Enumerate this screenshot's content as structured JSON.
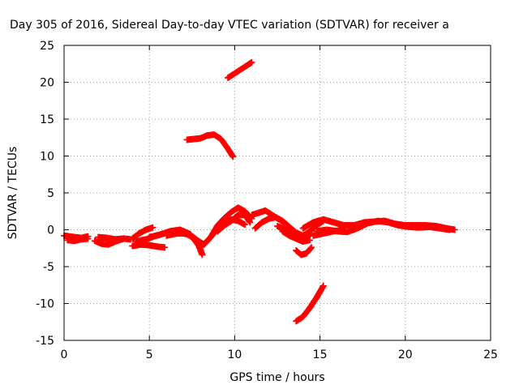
{
  "chart_data": {
    "type": "scatter",
    "title": "Day 305 of 2016, Sidereal Day-to-day VTEC variation (SDTVAR) for receiver a",
    "xlabel": "GPS time / hours",
    "ylabel": "SDTVAR / TECUs",
    "xlim": [
      0,
      25
    ],
    "ylim": [
      -15,
      25
    ],
    "xticks": [
      0,
      5,
      10,
      15,
      20,
      25
    ],
    "yticks": [
      -15,
      -10,
      -5,
      0,
      5,
      10,
      15,
      20,
      25
    ],
    "grid": true,
    "marker_color": "#ff0000",
    "series": [
      {
        "x": [
          0.0,
          0.3,
          0.6,
          1.0,
          1.4
        ],
        "y": [
          -0.8,
          -0.9,
          -1.0,
          -1.1,
          -0.9
        ]
      },
      {
        "x": [
          0.2,
          0.6,
          1.0,
          1.4
        ],
        "y": [
          -1.4,
          -1.5,
          -1.3,
          -1.2
        ]
      },
      {
        "x": [
          1.8,
          2.2,
          2.6,
          3.0,
          3.5,
          3.9
        ],
        "y": [
          -1.5,
          -1.9,
          -2.0,
          -1.6,
          -1.2,
          -1.3
        ]
      },
      {
        "x": [
          2.0,
          2.5,
          3.0,
          3.5
        ],
        "y": [
          -1.0,
          -1.1,
          -1.3,
          -1.2
        ]
      },
      {
        "x": [
          4.0,
          4.5,
          5.0,
          5.5,
          5.9
        ],
        "y": [
          -2.2,
          -2.0,
          -2.1,
          -2.3,
          -2.4
        ]
      },
      {
        "x": [
          4.0,
          4.4,
          4.8,
          5.2
        ],
        "y": [
          -1.2,
          -0.5,
          0.0,
          0.3
        ]
      },
      {
        "x": [
          4.2,
          4.8,
          5.4,
          6.0,
          6.6,
          7.2,
          7.8,
          8.2,
          8.6,
          9.0,
          9.4,
          9.8,
          10.2,
          10.6
        ],
        "y": [
          -1.6,
          -1.3,
          -0.8,
          -0.4,
          -0.3,
          -0.6,
          -1.4,
          -2.0,
          -1.0,
          0.2,
          1.0,
          1.4,
          1.2,
          0.7
        ]
      },
      {
        "x": [
          5.0,
          5.6,
          6.2,
          6.8,
          7.4,
          7.9,
          8.1
        ],
        "y": [
          -1.0,
          -0.7,
          -0.2,
          0.0,
          -0.6,
          -2.2,
          -3.4
        ]
      },
      {
        "x": [
          6.0,
          6.6,
          7.2,
          7.7
        ],
        "y": [
          -0.8,
          -0.5,
          -0.5,
          -1.2
        ]
      },
      {
        "x": [
          8.0,
          8.6,
          9.0,
          9.4,
          9.8,
          10.2,
          10.6,
          11.0
        ],
        "y": [
          -2.4,
          -1.0,
          0.6,
          1.6,
          2.4,
          3.0,
          2.5,
          1.5
        ]
      },
      {
        "x": [
          9.0,
          9.4,
          9.8,
          10.2,
          10.6,
          10.9
        ],
        "y": [
          -0.2,
          0.6,
          1.2,
          2.0,
          2.0,
          1.0
        ]
      },
      {
        "x": [
          7.2,
          7.6,
          8.0,
          8.4,
          8.8,
          9.2,
          9.6,
          9.9
        ],
        "y": [
          12.2,
          12.3,
          12.4,
          12.8,
          12.9,
          12.3,
          11.0,
          9.9
        ]
      },
      {
        "x": [
          9.6,
          10.0,
          10.4,
          10.8,
          11.0
        ],
        "y": [
          20.6,
          21.2,
          21.8,
          22.4,
          22.7
        ]
      },
      {
        "x": [
          11.0,
          11.4,
          11.8,
          12.2,
          12.6,
          13.0
        ],
        "y": [
          2.0,
          2.3,
          2.6,
          2.0,
          1.4,
          0.8
        ]
      },
      {
        "x": [
          11.2,
          11.6,
          12.0,
          12.4,
          12.8,
          13.2,
          13.6,
          14.0,
          14.4,
          14.8,
          15.2
        ],
        "y": [
          0.2,
          1.0,
          1.5,
          1.7,
          1.2,
          0.4,
          -0.4,
          -0.8,
          -0.2,
          0.6,
          1.2
        ]
      },
      {
        "x": [
          12.8,
          13.2,
          13.6,
          14.0,
          14.4
        ],
        "y": [
          -0.2,
          -0.8,
          -1.2,
          -1.6,
          -1.4
        ]
      },
      {
        "x": [
          12.5,
          13.0,
          13.5,
          14.0,
          14.5
        ],
        "y": [
          0.5,
          0.0,
          -0.6,
          -1.0,
          -0.5
        ]
      },
      {
        "x": [
          13.6,
          13.9,
          14.2,
          14.5
        ],
        "y": [
          -2.8,
          -3.4,
          -3.2,
          -2.4
        ]
      },
      {
        "x": [
          13.6,
          14.0,
          14.4,
          14.8,
          15.2
        ],
        "y": [
          -12.4,
          -11.8,
          -10.6,
          -9.2,
          -7.6
        ]
      },
      {
        "x": [
          14.0,
          14.6,
          15.2,
          15.8,
          16.4,
          17.0,
          17.6,
          18.2,
          18.8,
          19.4,
          20.0,
          20.6,
          21.2,
          21.8,
          22.4,
          22.9
        ],
        "y": [
          0.2,
          1.0,
          1.4,
          1.0,
          0.6,
          0.6,
          1.0,
          1.1,
          1.2,
          0.8,
          0.6,
          0.6,
          0.6,
          0.5,
          0.2,
          0.0
        ]
      },
      {
        "x": [
          14.8,
          15.4,
          16.0,
          16.6,
          17.2,
          17.8,
          18.4,
          19.0,
          19.6,
          20.2,
          20.8,
          21.4,
          22.0,
          22.6
        ],
        "y": [
          -0.2,
          0.0,
          -0.2,
          -0.3,
          0.2,
          0.9,
          1.2,
          1.0,
          0.6,
          0.4,
          0.3,
          0.4,
          0.2,
          0.0
        ]
      },
      {
        "x": [
          14.6,
          15.2,
          15.8,
          16.4
        ],
        "y": [
          -0.8,
          -0.5,
          -0.2,
          0.0
        ]
      }
    ]
  }
}
